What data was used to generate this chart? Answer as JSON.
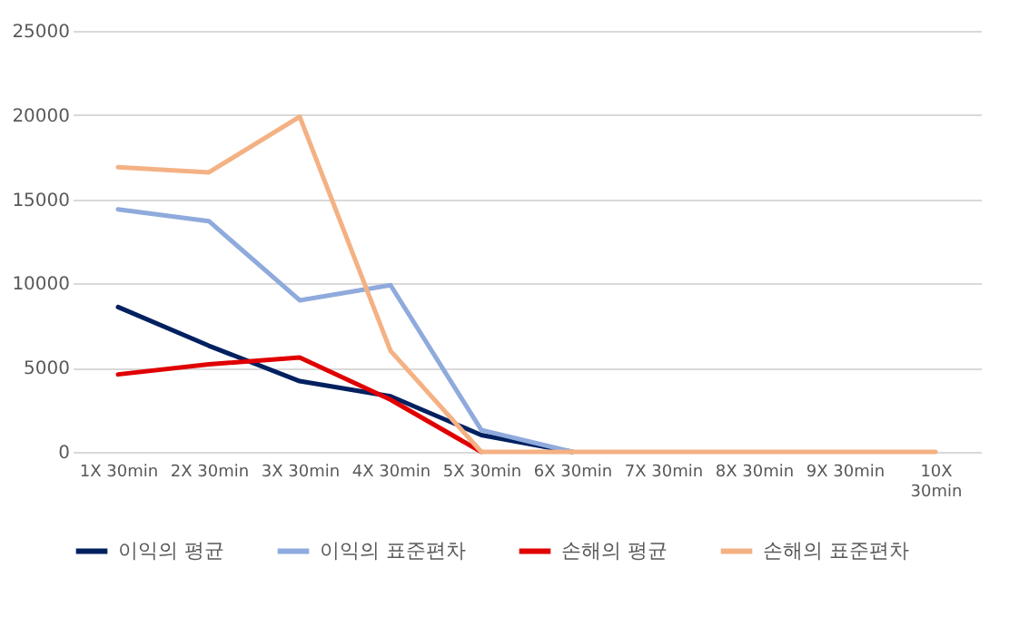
{
  "chart_data": {
    "type": "line",
    "categories": [
      "1X 30min",
      "2X 30min",
      "3X 30min",
      "4X 30min",
      "5X 30min",
      "6X 30min",
      "7X 30min",
      "8X 30min",
      "9X 30min",
      "10X 30min"
    ],
    "series": [
      {
        "name": "이익의 평균",
        "color": "#002060",
        "values": [
          8600,
          6300,
          4200,
          3300,
          1000,
          0,
          null,
          null,
          null,
          null
        ]
      },
      {
        "name": "이익의 표준편차",
        "color": "#8faadc",
        "values": [
          14400,
          13700,
          9000,
          9900,
          1300,
          0,
          null,
          null,
          null,
          null
        ]
      },
      {
        "name": "손해의 평균",
        "color": "#e00000",
        "values": [
          4600,
          5200,
          5600,
          3100,
          0,
          null,
          null,
          null,
          null,
          null
        ]
      },
      {
        "name": "손해의 표준편차",
        "color": "#f4b183",
        "values": [
          16900,
          16600,
          19900,
          6000,
          0,
          0,
          0,
          0,
          0,
          0
        ]
      }
    ],
    "ylim": [
      0,
      25000
    ],
    "yticks": [
      0,
      5000,
      10000,
      15000,
      20000,
      25000
    ],
    "grid": "y",
    "legend": "bottom",
    "marker": "none",
    "line_style": "solid"
  }
}
